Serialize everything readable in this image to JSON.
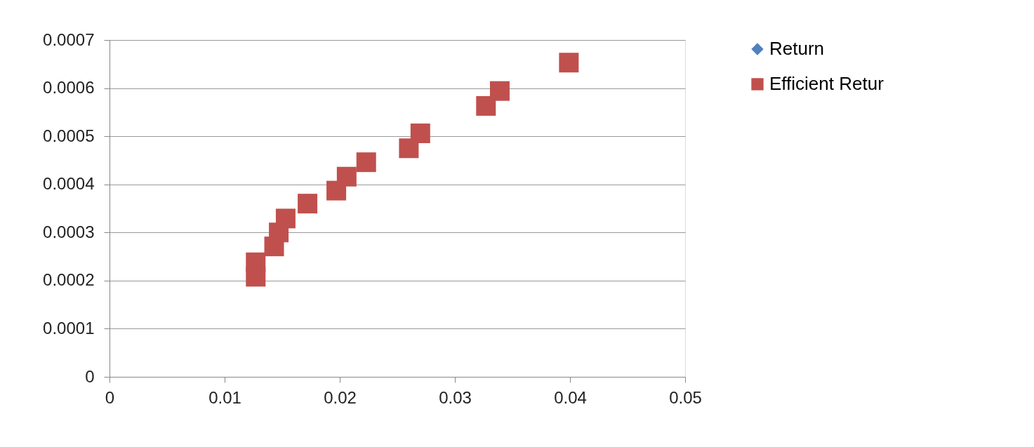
{
  "chart_data": {
    "type": "scatter",
    "series": [
      {
        "name": "Return",
        "color": "#4f81bd",
        "marker": "diamond"
      },
      {
        "name": "Efficient Retur",
        "color": "#c0504d",
        "marker": "square",
        "x": [
          0.0127,
          0.0127,
          0.0143,
          0.0147,
          0.0153,
          0.0172,
          0.0197,
          0.0206,
          0.0223,
          0.026,
          0.027,
          0.0327,
          0.0339,
          0.0399
        ],
        "values": [
          0.000208,
          0.000238,
          0.000271,
          0.0003,
          0.000329,
          0.00036,
          0.000387,
          0.000416,
          0.000446,
          0.000475,
          0.000506,
          0.000563,
          0.000594,
          0.000653
        ]
      }
    ],
    "xlim": [
      0,
      0.05
    ],
    "xticks": [
      0,
      0.01,
      0.02,
      0.03,
      0.04,
      0.05
    ],
    "ylim": [
      0,
      0.0007
    ],
    "yticks": [
      0,
      0.0001,
      0.0002,
      0.0003,
      0.0004,
      0.0005,
      0.0006,
      0.0007
    ],
    "grid": "y",
    "legend": "right"
  }
}
